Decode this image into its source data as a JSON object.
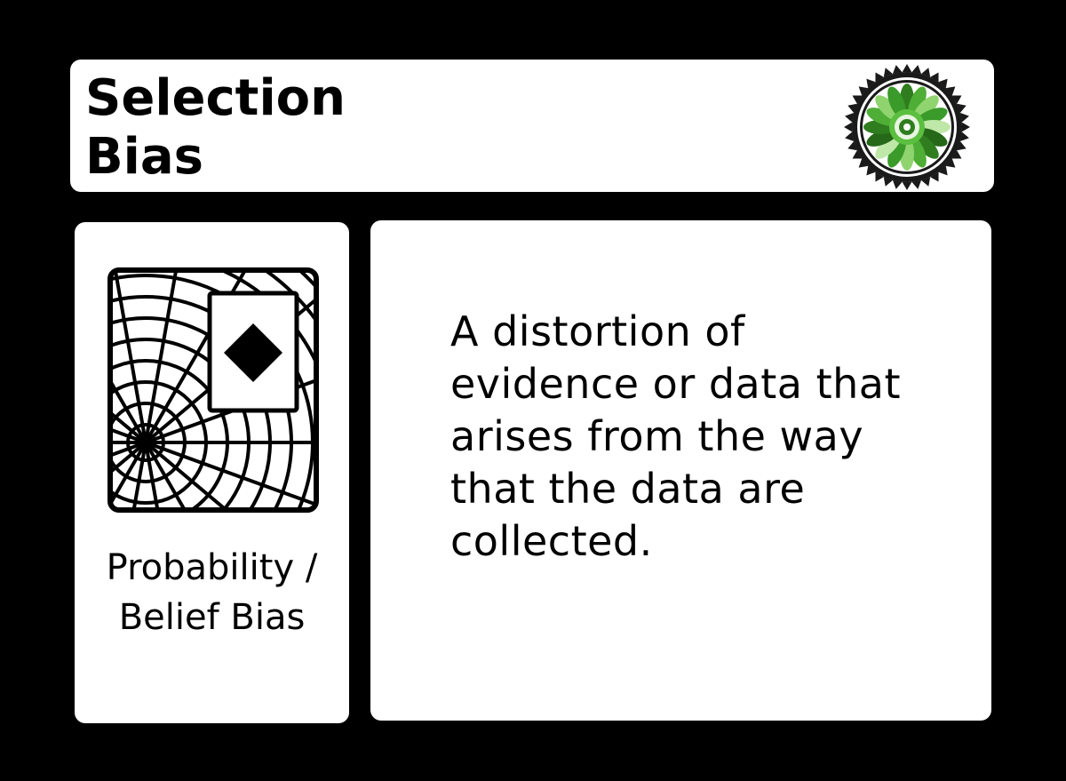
{
  "title": {
    "line1": "Selection",
    "line2": "Bias"
  },
  "emblem": {
    "icon": "green-flower-seal-icon",
    "color": "#3a9a2a"
  },
  "category": {
    "icon": "spiderweb-card-diamond-icon",
    "label_line1": "Probability /",
    "label_line2": "Belief Bias"
  },
  "definition": {
    "lines": [
      "A distortion of",
      "evidence or data that",
      "arises from the way",
      "that the data are",
      "collected."
    ]
  },
  "colors": {
    "background": "#000000",
    "panel": "#ffffff",
    "text": "#000000",
    "accent": "#3a9a2a"
  }
}
